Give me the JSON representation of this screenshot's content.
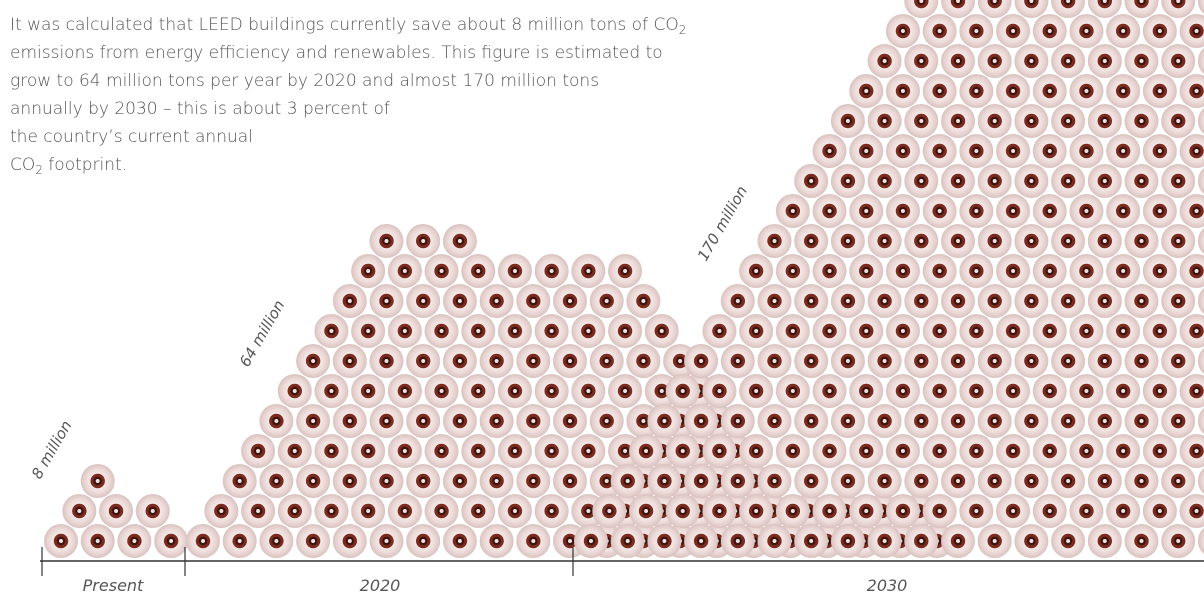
{
  "description": {
    "line1": "It was calculated that LEED buildings currently save about 8 million tons of CO",
    "line1_sub": "2",
    "line2": "emissions from energy efficiency and renewables. This figure is estimated to",
    "line3": "grow to 64 million tons per year by 2020 and almost 170 million tons",
    "line4": "annually by 2030 – this is about 3 percent of",
    "line5": "the country’s current annual",
    "line6_pre": "CO",
    "line6_sub": "2",
    "line6_post": " footprint."
  },
  "colors": {
    "ball_outer": "#ecdad8",
    "ball_ring": "#7b2a1e",
    "ball_core": "#3b1410",
    "axis": "#333333",
    "text": "#555555"
  },
  "chart_data": {
    "type": "pictograph",
    "unit": "million tons CO2 saved per year",
    "groups": [
      {
        "category": "Present",
        "label": "8 million",
        "value": 8,
        "rows_from_bottom": [
          4,
          3,
          1
        ]
      },
      {
        "category": "2020",
        "label": "64 million",
        "value": 64,
        "rows_from_bottom": [
          21,
          20,
          15,
          14,
          13,
          12,
          11,
          10,
          9,
          8,
          3
        ]
      },
      {
        "category": "2030",
        "label": "170 million",
        "value": 170,
        "rows_from_bottom": [
          35,
          34,
          33,
          32,
          31,
          30,
          29,
          28,
          27,
          26,
          25,
          24,
          23,
          22,
          21,
          20,
          19,
          18,
          17,
          16,
          15,
          14,
          13,
          12,
          11,
          10,
          9,
          8,
          7,
          6,
          5,
          4,
          3,
          2,
          1
        ]
      }
    ]
  }
}
